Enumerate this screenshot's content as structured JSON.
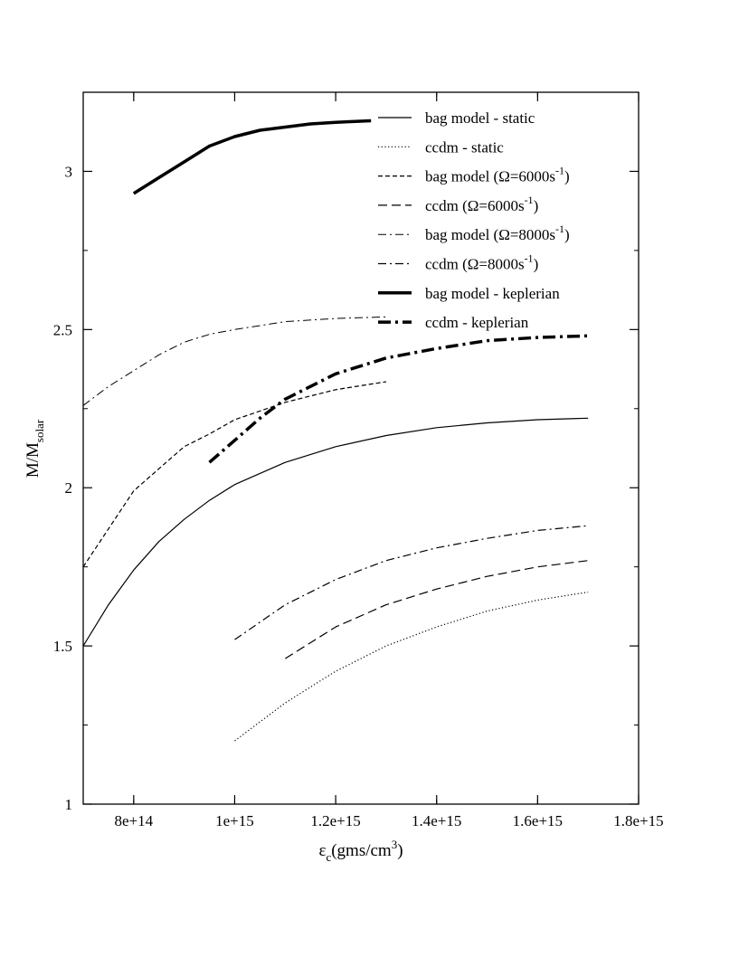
{
  "chart_data": {
    "type": "line",
    "xlabel": {
      "base": "ε",
      "sub": "c",
      "unit_pre": "(gms/cm",
      "unit_sup": "3",
      "unit_post": ")"
    },
    "ylabel": {
      "base": "M/M",
      "sub": "solar"
    },
    "xlim": [
      700000000000000.0,
      1800000000000000.0
    ],
    "ylim": [
      1.0,
      3.25
    ],
    "x_ticks": [
      {
        "value": 800000000000000.0,
        "label": "8e+14"
      },
      {
        "value": 1000000000000000.0,
        "label": "1e+15"
      },
      {
        "value": 1200000000000000.0,
        "label": "1.2e+15"
      },
      {
        "value": 1400000000000000.0,
        "label": "1.4e+15"
      },
      {
        "value": 1600000000000000.0,
        "label": "1.6e+15"
      },
      {
        "value": 1800000000000000.0,
        "label": "1.8e+15"
      }
    ],
    "y_ticks": [
      {
        "value": 1.0,
        "label": "1"
      },
      {
        "value": 1.5,
        "label": "1.5"
      },
      {
        "value": 2.0,
        "label": "2"
      },
      {
        "value": 2.5,
        "label": "2.5"
      },
      {
        "value": 3.0,
        "label": "3"
      }
    ],
    "legend_position": "top-right",
    "grid": false,
    "series": [
      {
        "name": "bag model - static",
        "style": "solid",
        "width": 1.2,
        "x": [
          700000000000000.0,
          750000000000000.0,
          800000000000000.0,
          850000000000000.0,
          900000000000000.0,
          950000000000000.0,
          1000000000000000.0,
          1100000000000000.0,
          1200000000000000.0,
          1300000000000000.0,
          1400000000000000.0,
          1500000000000000.0,
          1600000000000000.0,
          1700000000000000.0
        ],
        "y": [
          1.5,
          1.63,
          1.74,
          1.83,
          1.9,
          1.96,
          2.01,
          2.08,
          2.13,
          2.165,
          2.19,
          2.205,
          2.215,
          2.22
        ]
      },
      {
        "name": "ccdm - static",
        "style": "dotted",
        "width": 1.2,
        "x": [
          1000000000000000.0,
          1100000000000000.0,
          1200000000000000.0,
          1300000000000000.0,
          1400000000000000.0,
          1500000000000000.0,
          1600000000000000.0,
          1700000000000000.0
        ],
        "y": [
          1.2,
          1.32,
          1.42,
          1.5,
          1.56,
          1.61,
          1.645,
          1.67
        ]
      },
      {
        "name": "bag model (Ω=6000s-1)",
        "legend_base": "bag model (Ω=6000s",
        "legend_sup": "-1",
        "legend_post": ")",
        "style": "dash-short",
        "width": 1.2,
        "x": [
          700000000000000.0,
          750000000000000.0,
          800000000000000.0,
          850000000000000.0,
          900000000000000.0,
          950000000000000.0,
          1000000000000000.0,
          1100000000000000.0,
          1200000000000000.0,
          1300000000000000.0
        ],
        "y": [
          1.75,
          1.87,
          1.99,
          2.06,
          2.13,
          2.17,
          2.215,
          2.27,
          2.31,
          2.335
        ]
      },
      {
        "name": "ccdm (Ω=6000s-1)",
        "legend_base": "ccdm (Ω=6000s",
        "legend_sup": "-1",
        "legend_post": ")",
        "style": "dash-long",
        "width": 1.2,
        "x": [
          1100000000000000.0,
          1200000000000000.0,
          1300000000000000.0,
          1400000000000000.0,
          1500000000000000.0,
          1600000000000000.0,
          1700000000000000.0
        ],
        "y": [
          1.46,
          1.56,
          1.63,
          1.68,
          1.72,
          1.75,
          1.77
        ]
      },
      {
        "name": "bag model (Ω=8000s-1)",
        "legend_base": "bag model (Ω=8000s",
        "legend_sup": "-1",
        "legend_post": ")",
        "style": "dashdot",
        "width": 1.0,
        "x": [
          700000000000000.0,
          750000000000000.0,
          800000000000000.0,
          850000000000000.0,
          900000000000000.0,
          950000000000000.0,
          1000000000000000.0,
          1100000000000000.0,
          1200000000000000.0,
          1300000000000000.0
        ],
        "y": [
          2.26,
          2.32,
          2.37,
          2.42,
          2.46,
          2.485,
          2.5,
          2.525,
          2.535,
          2.54
        ]
      },
      {
        "name": "ccdm (Ω=8000s-1)",
        "legend_base": "ccdm (Ω=8000s",
        "legend_sup": "-1",
        "legend_post": ")",
        "style": "dashdot",
        "width": 1.2,
        "x": [
          1000000000000000.0,
          1100000000000000.0,
          1200000000000000.0,
          1300000000000000.0,
          1400000000000000.0,
          1500000000000000.0,
          1600000000000000.0,
          1700000000000000.0
        ],
        "y": [
          1.52,
          1.63,
          1.71,
          1.77,
          1.81,
          1.84,
          1.865,
          1.88
        ]
      },
      {
        "name": "bag model - keplerian",
        "style": "solid",
        "width": 3.5,
        "x": [
          800000000000000.0,
          850000000000000.0,
          900000000000000.0,
          950000000000000.0,
          1000000000000000.0,
          1050000000000000.0,
          1100000000000000.0,
          1150000000000000.0,
          1200000000000000.0,
          1270000000000000.0
        ],
        "y": [
          2.93,
          2.98,
          3.03,
          3.08,
          3.11,
          3.13,
          3.14,
          3.15,
          3.155,
          3.16
        ]
      },
      {
        "name": "ccdm - keplerian",
        "style": "dashdot-thick",
        "width": 3.5,
        "x": [
          950000000000000.0,
          1000000000000000.0,
          1050000000000000.0,
          1100000000000000.0,
          1200000000000000.0,
          1300000000000000.0,
          1400000000000000.0,
          1500000000000000.0,
          1600000000000000.0,
          1700000000000000.0
        ],
        "y": [
          2.08,
          2.15,
          2.22,
          2.28,
          2.36,
          2.41,
          2.44,
          2.465,
          2.475,
          2.48
        ]
      }
    ]
  }
}
